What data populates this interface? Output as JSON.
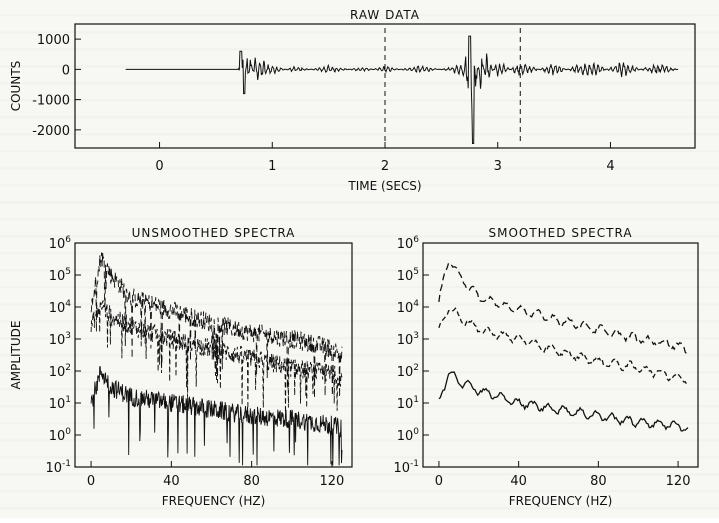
{
  "chart_data": [
    {
      "type": "line",
      "title": "RAW DATA",
      "xlabel": "TIME (SECS)",
      "ylabel": "COUNTS",
      "xlim": [
        -0.75,
        4.75
      ],
      "ylim": [
        -2600,
        1500
      ],
      "xticks": [
        "0",
        "1",
        "2",
        "3",
        "4"
      ],
      "yticks": [
        "1000",
        "0",
        "-1000",
        "-2000"
      ],
      "markers": [
        2.0,
        3.2
      ],
      "series": [
        {
          "x": [
            -0.3,
            0.7,
            0.72,
            0.75,
            0.78,
            0.8,
            0.85,
            1.0,
            1.2,
            1.5,
            1.8,
            2.0,
            2.3,
            2.6,
            2.7,
            2.75,
            2.78,
            2.8,
            2.85,
            2.9,
            3.0,
            3.2,
            3.5,
            3.8,
            4.1,
            4.4,
            4.6
          ],
          "values": [
            0,
            0,
            500,
            -800,
            700,
            -600,
            400,
            150,
            -100,
            120,
            -80,
            100,
            -120,
            80,
            200,
            1100,
            -2450,
            800,
            -700,
            500,
            -300,
            250,
            -200,
            300,
            -250,
            200,
            0
          ]
        }
      ]
    },
    {
      "type": "line",
      "title": "UNSMOOTHED SPECTRA",
      "xlabel": "FREQUENCY (HZ)",
      "ylabel": "AMPLITUDE",
      "xlim": [
        -8,
        130
      ],
      "ylim": [
        -1,
        6
      ],
      "log_y": true,
      "xticks": [
        "0",
        "40",
        "80",
        "120"
      ],
      "yticks": [
        "10^-1",
        "10^0",
        "10^1",
        "10^2",
        "10^3",
        "10^4",
        "10^5",
        "10^6"
      ],
      "series": [
        {
          "x": [
            0,
            5,
            10,
            20,
            40,
            60,
            80,
            100,
            120,
            125
          ],
          "values": [
            4.0,
            5.6,
            5.0,
            4.3,
            3.9,
            3.5,
            3.2,
            3.0,
            2.7,
            2.5
          ]
        },
        {
          "x": [
            0,
            5,
            10,
            20,
            40,
            60,
            80,
            100,
            120,
            125
          ],
          "values": [
            3.4,
            4.1,
            3.7,
            3.4,
            3.0,
            2.7,
            2.4,
            2.1,
            1.9,
            1.8
          ]
        },
        {
          "x": [
            0,
            5,
            10,
            20,
            40,
            60,
            80,
            100,
            120,
            125
          ],
          "values": [
            1.0,
            2.0,
            1.5,
            1.2,
            1.0,
            0.8,
            0.6,
            0.5,
            0.3,
            0.2
          ]
        }
      ]
    },
    {
      "type": "line",
      "title": "SMOOTHED SPECTRA",
      "xlabel": "FREQUENCY (HZ)",
      "xlim": [
        -8,
        130
      ],
      "ylim": [
        -1,
        6
      ],
      "log_y": true,
      "xticks": [
        "0",
        "40",
        "80",
        "120"
      ],
      "yticks": [
        "10^-1",
        "10^0",
        "10^1",
        "10^2",
        "10^3",
        "10^4",
        "10^5",
        "10^6"
      ],
      "series": [
        {
          "x": [
            0,
            5,
            10,
            20,
            40,
            60,
            80,
            100,
            120,
            125
          ],
          "values": [
            4.2,
            5.5,
            5.0,
            4.3,
            3.9,
            3.6,
            3.3,
            3.0,
            2.8,
            2.6
          ]
        },
        {
          "x": [
            0,
            5,
            10,
            20,
            40,
            60,
            80,
            100,
            120,
            125
          ],
          "values": [
            3.3,
            4.0,
            3.7,
            3.3,
            3.0,
            2.6,
            2.3,
            2.1,
            1.8,
            1.7
          ]
        },
        {
          "x": [
            0,
            5,
            10,
            20,
            40,
            60,
            80,
            100,
            120,
            125
          ],
          "values": [
            1.0,
            2.0,
            1.7,
            1.4,
            1.0,
            0.8,
            0.6,
            0.4,
            0.3,
            0.2
          ]
        }
      ]
    }
  ]
}
